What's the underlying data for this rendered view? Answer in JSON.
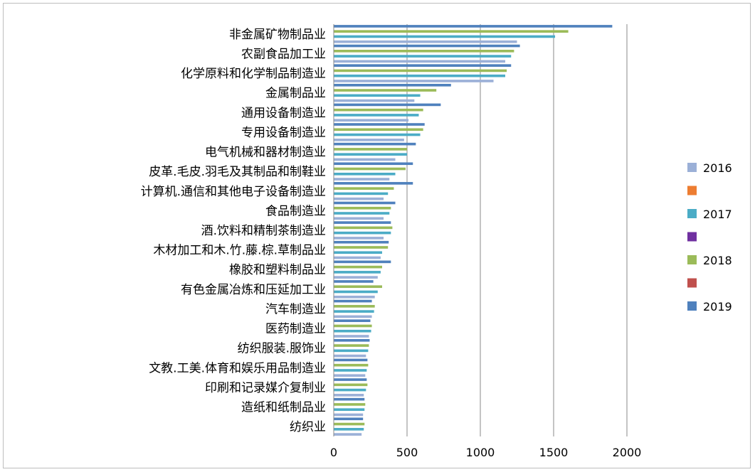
{
  "chart_data": {
    "type": "bar",
    "orientation": "horizontal",
    "categories": [
      "纺织业",
      "造纸和纸制品业",
      "印刷和记录媒介复制业",
      "文教.工美.体育和娱乐用品制造业",
      "纺织服装.服饰业",
      "医药制造业",
      "汽车制造业",
      "有色金属冶炼和压延加工业",
      "橡胶和塑料制品业",
      "木材加工和木.竹.藤.棕.草制品业",
      "酒.饮料和精制茶制造业",
      "食品制造业",
      "计算机.通信和其他电子设备制造业",
      "皮革.毛皮.羽毛及其制品和制鞋业",
      "电气机械和器材制造业",
      "专用设备制造业",
      "通用设备制造业",
      "金属制品业",
      "化学原料和化学制品制造业",
      "农副食品加工业",
      "非金属矿物制品业"
    ],
    "series": [
      {
        "name": "2016",
        "color": "#9bb0d7",
        "values": [
          190,
          200,
          205,
          215,
          220,
          240,
          260,
          280,
          300,
          320,
          340,
          340,
          340,
          380,
          420,
          480,
          510,
          550,
          1090,
          1170,
          1250
        ]
      },
      {
        "name": "",
        "color": "#ed7d31",
        "values": [
          0,
          0,
          0,
          0,
          0,
          0,
          0,
          0,
          0,
          0,
          0,
          0,
          0,
          0,
          0,
          0,
          0,
          0,
          0,
          0,
          0
        ]
      },
      {
        "name": "2017",
        "color": "#4bacc6",
        "values": [
          205,
          210,
          220,
          225,
          235,
          255,
          275,
          300,
          320,
          330,
          390,
          380,
          370,
          420,
          500,
          590,
          580,
          590,
          1170,
          1210,
          1510
        ]
      },
      {
        "name": "",
        "color": "#7030a0",
        "values": [
          0,
          0,
          0,
          0,
          0,
          0,
          0,
          0,
          0,
          0,
          0,
          0,
          0,
          0,
          0,
          0,
          0,
          0,
          0,
          0,
          0
        ]
      },
      {
        "name": "2018",
        "color": "#9bbb59",
        "values": [
          210,
          215,
          230,
          235,
          240,
          260,
          280,
          330,
          330,
          370,
          400,
          390,
          410,
          490,
          500,
          610,
          610,
          700,
          1180,
          1230,
          1600
        ]
      },
      {
        "name": "",
        "color": "#c0504d",
        "values": [
          0,
          0,
          0,
          0,
          0,
          0,
          0,
          0,
          0,
          0,
          0,
          0,
          0,
          0,
          0,
          0,
          0,
          0,
          0,
          0,
          0
        ]
      },
      {
        "name": "2019",
        "color": "#4f81bd",
        "values": [
          200,
          210,
          225,
          230,
          245,
          250,
          260,
          270,
          390,
          375,
          390,
          420,
          540,
          540,
          560,
          620,
          730,
          800,
          1210,
          1270,
          1900
        ]
      }
    ],
    "xlim": [
      0,
      2000
    ],
    "xticks": [
      0,
      500,
      1000,
      1500,
      2000
    ],
    "grid": "vertical",
    "legend_position": "right",
    "title": "",
    "xlabel": "",
    "ylabel": ""
  }
}
